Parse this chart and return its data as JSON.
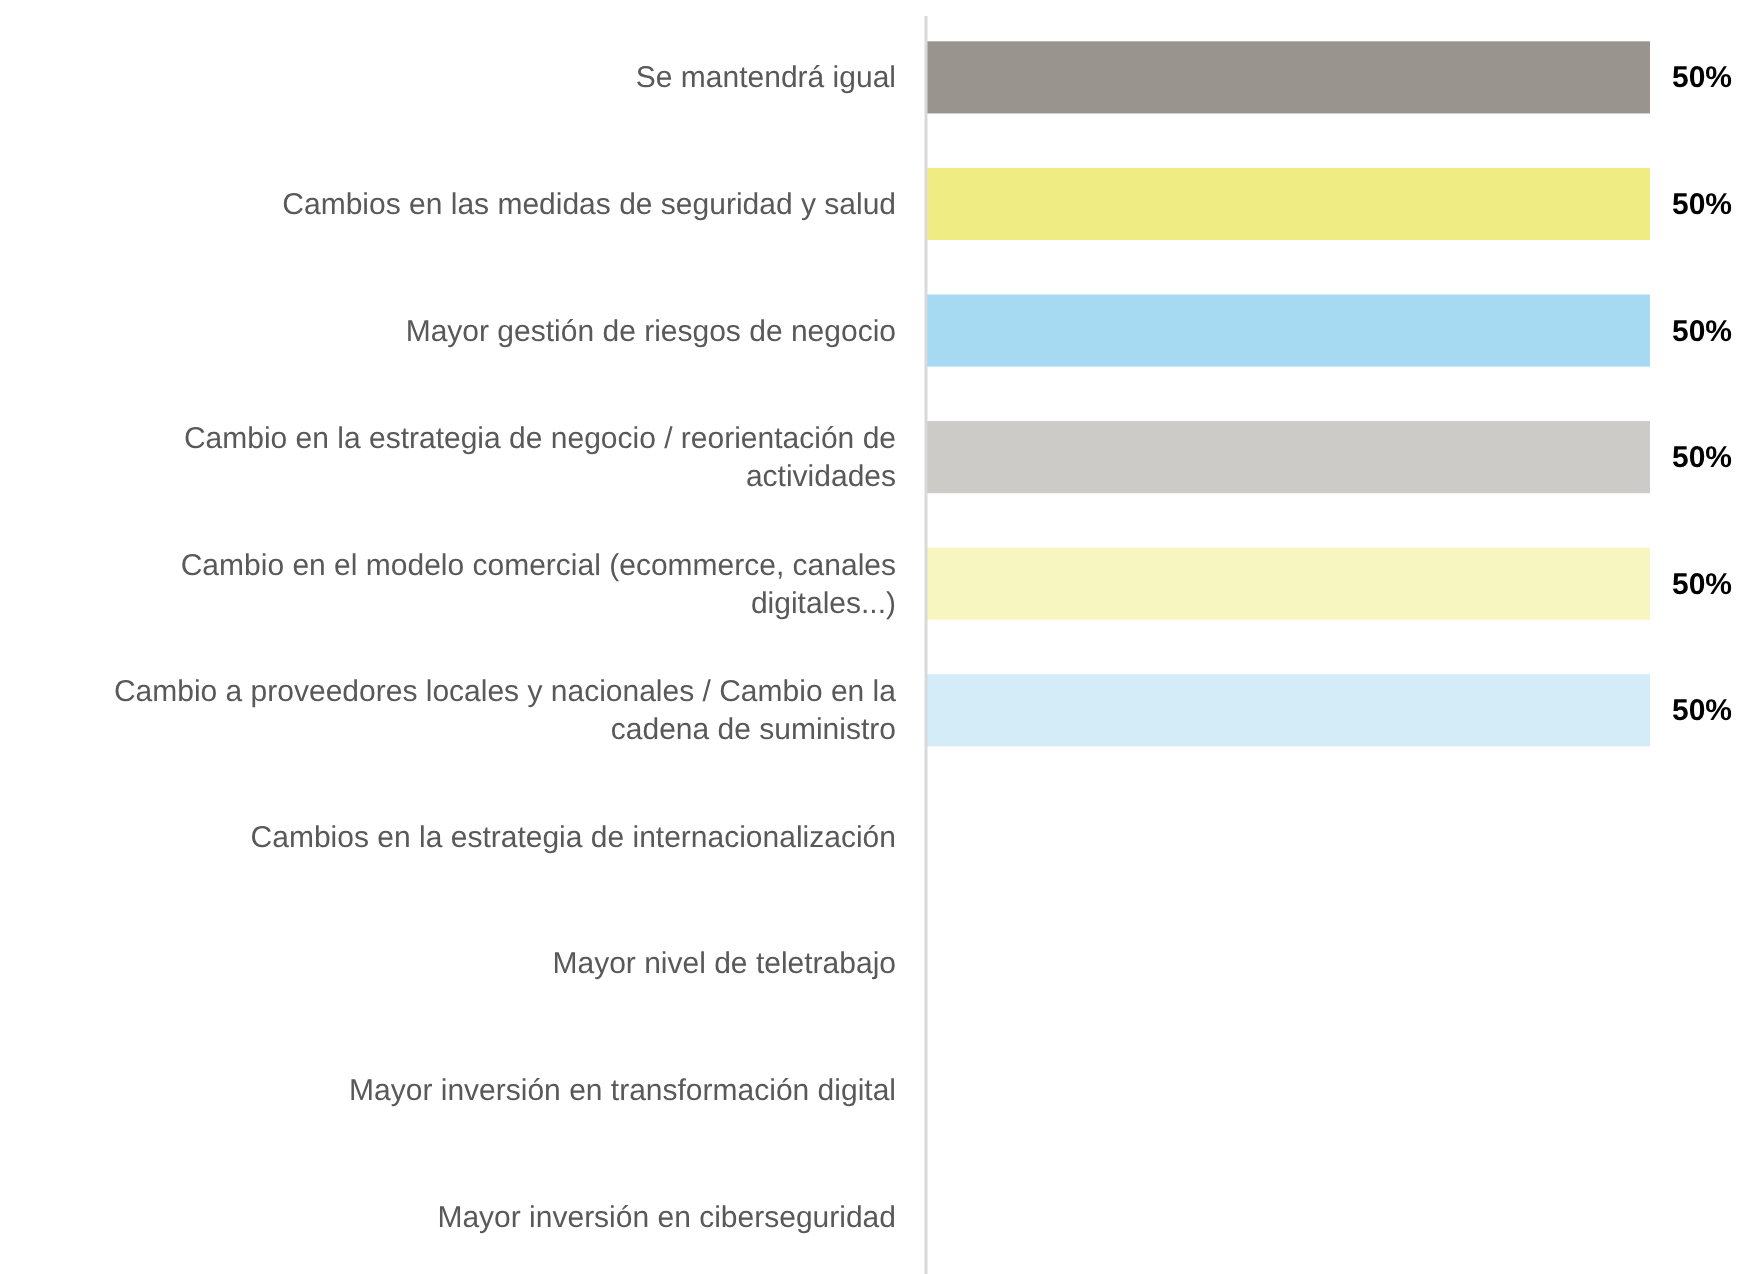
{
  "chart_data": {
    "type": "bar",
    "orientation": "horizontal",
    "categories": [
      "Se mantendrá igual",
      "Cambios en las medidas de seguridad y salud",
      "Mayor gestión de riesgos de negocio",
      "Cambio en la estrategia de negocio / reorientación de actividades",
      "Cambio en el modelo comercial (ecommerce, canales digitales...)",
      "Cambio a proveedores locales y nacionales / Cambio en la cadena de suministro",
      "Cambios en la estrategia de internacionalización",
      "Mayor nivel de teletrabajo",
      "Mayor inversión en transformación digital",
      "Mayor inversión en ciberseguridad"
    ],
    "values": [
      50,
      50,
      50,
      50,
      50,
      50,
      null,
      null,
      null,
      null
    ],
    "colors": [
      "#9a948e",
      "#f0ec84",
      "#a5daf2",
      "#cccbc7",
      "#f7f5c0",
      "#d4ebf8",
      null,
      null,
      null,
      null
    ],
    "value_labels": [
      "50%",
      "50%",
      "50%",
      "50%",
      "50%",
      "50%",
      null,
      null,
      null,
      null
    ]
  }
}
